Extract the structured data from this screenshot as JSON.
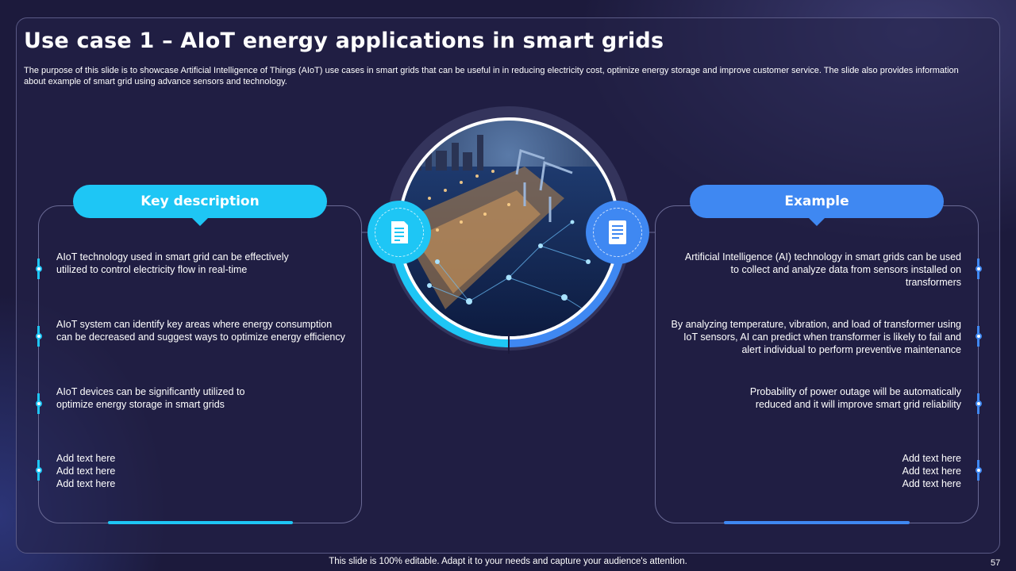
{
  "slide": {
    "title": "Use case 1 – AIoT energy applications in smart grids",
    "subtitle": "The purpose of this slide is to showcase Artificial Intelligence of Things (AIoT) use cases in smart grids that can be useful in in reducing electricity cost, optimize energy storage and improve customer service. The slide also provides information about example of smart grid using advance sensors and technology.",
    "footer": "This slide is 100% editable. Adapt it to your needs and capture your audience's attention.",
    "page_number": "57"
  },
  "left_panel": {
    "heading": "Key description",
    "icon": "document-icon",
    "items": [
      "AIoT technology used in smart grid can be effectively  utilized to control electricity flow in real-time",
      "AIoT system can identify key areas where energy consumption can be decreased and suggest ways to optimize energy efficiency",
      "AIoT devices can be significantly utilized to optimize energy storage in smart grids",
      "Add text here\nAdd text here\nAdd text here"
    ]
  },
  "right_panel": {
    "heading": "Example",
    "icon": "report-icon",
    "items": [
      "Artificial Intelligence (AI) technology in smart grids can be used to collect and analyze data from sensors installed on transformers",
      "By analyzing temperature, vibration, and load of transformer using IoT sensors, AI can predict when transformer is likely to fail and alert individual to perform preventive maintenance",
      "Probability of power outage will be automatically reduced and it will improve smart grid reliability",
      "Add text here\nAdd text here\nAdd text here"
    ]
  },
  "center_image": {
    "subject": "smart-grid-port-night-photo"
  },
  "colors": {
    "background": "#1c1a3c",
    "cyan_accent": "#1ec6f5",
    "blue_accent": "#3f88f2"
  }
}
